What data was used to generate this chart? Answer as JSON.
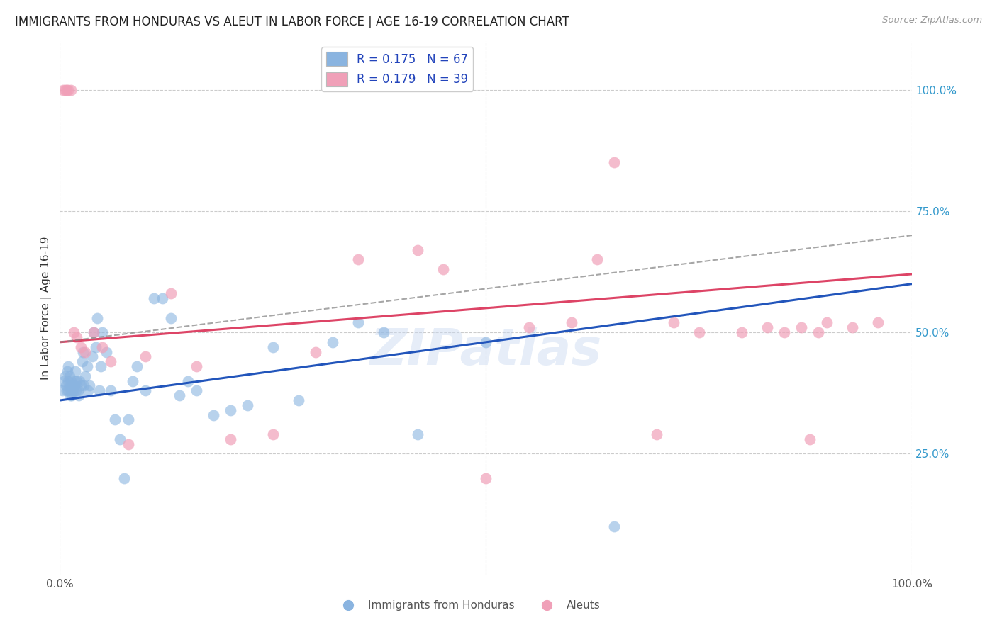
{
  "title": "IMMIGRANTS FROM HONDURAS VS ALEUT IN LABOR FORCE | AGE 16-19 CORRELATION CHART",
  "source": "Source: ZipAtlas.com",
  "ylabel": "In Labor Force | Age 16-19",
  "xlim": [
    0.0,
    1.0
  ],
  "ylim": [
    0.0,
    1.1
  ],
  "ytick_positions": [
    0.25,
    0.5,
    0.75,
    1.0
  ],
  "right_ytick_labels": [
    "25.0%",
    "50.0%",
    "75.0%",
    "100.0%"
  ],
  "blue_R": 0.175,
  "blue_N": 67,
  "pink_R": 0.179,
  "pink_N": 39,
  "background_color": "#ffffff",
  "grid_color": "#cccccc",
  "blue_color": "#8ab4e0",
  "pink_color": "#f0a0b8",
  "blue_line_color": "#2255bb",
  "pink_line_color": "#dd4466",
  "dash_line_color": "#888888",
  "watermark_color": "#c8d8f0",
  "blue_scatter_x": [
    0.003,
    0.005,
    0.006,
    0.007,
    0.008,
    0.009,
    0.01,
    0.01,
    0.01,
    0.011,
    0.012,
    0.012,
    0.013,
    0.013,
    0.014,
    0.015,
    0.015,
    0.016,
    0.017,
    0.018,
    0.018,
    0.019,
    0.02,
    0.021,
    0.022,
    0.023,
    0.025,
    0.026,
    0.027,
    0.028,
    0.03,
    0.032,
    0.033,
    0.035,
    0.038,
    0.04,
    0.042,
    0.044,
    0.046,
    0.048,
    0.05,
    0.055,
    0.06,
    0.065,
    0.07,
    0.075,
    0.08,
    0.085,
    0.09,
    0.1,
    0.11,
    0.12,
    0.13,
    0.14,
    0.15,
    0.16,
    0.18,
    0.2,
    0.22,
    0.25,
    0.28,
    0.32,
    0.35,
    0.38,
    0.42,
    0.5,
    0.65
  ],
  "blue_scatter_y": [
    0.38,
    0.4,
    0.41,
    0.39,
    0.38,
    0.42,
    0.43,
    0.4,
    0.38,
    0.41,
    0.37,
    0.39,
    0.38,
    0.4,
    0.37,
    0.39,
    0.38,
    0.38,
    0.39,
    0.4,
    0.42,
    0.38,
    0.4,
    0.38,
    0.37,
    0.4,
    0.39,
    0.44,
    0.46,
    0.39,
    0.41,
    0.43,
    0.38,
    0.39,
    0.45,
    0.5,
    0.47,
    0.53,
    0.38,
    0.43,
    0.5,
    0.46,
    0.38,
    0.32,
    0.28,
    0.2,
    0.32,
    0.4,
    0.43,
    0.38,
    0.57,
    0.57,
    0.53,
    0.37,
    0.4,
    0.38,
    0.33,
    0.34,
    0.35,
    0.47,
    0.36,
    0.48,
    0.52,
    0.5,
    0.29,
    0.48,
    0.1
  ],
  "pink_scatter_x": [
    0.004,
    0.006,
    0.008,
    0.01,
    0.013,
    0.016,
    0.02,
    0.025,
    0.03,
    0.04,
    0.05,
    0.06,
    0.08,
    0.1,
    0.13,
    0.16,
    0.2,
    0.25,
    0.3,
    0.35,
    0.42,
    0.45,
    0.5,
    0.55,
    0.6,
    0.63,
    0.65,
    0.7,
    0.72,
    0.75,
    0.8,
    0.83,
    0.85,
    0.87,
    0.88,
    0.89,
    0.9,
    0.93,
    0.96
  ],
  "pink_scatter_y": [
    1.0,
    1.0,
    1.0,
    1.0,
    1.0,
    0.5,
    0.49,
    0.47,
    0.46,
    0.5,
    0.47,
    0.44,
    0.27,
    0.45,
    0.58,
    0.43,
    0.28,
    0.29,
    0.46,
    0.65,
    0.67,
    0.63,
    0.2,
    0.51,
    0.52,
    0.65,
    0.85,
    0.29,
    0.52,
    0.5,
    0.5,
    0.51,
    0.5,
    0.51,
    0.28,
    0.5,
    0.52,
    0.51,
    0.52
  ],
  "blue_trend": [
    0.0,
    1.0,
    0.36,
    0.6
  ],
  "pink_trend": [
    0.0,
    1.0,
    0.48,
    0.62
  ],
  "dash_trend": [
    0.0,
    1.0,
    0.48,
    0.7
  ]
}
